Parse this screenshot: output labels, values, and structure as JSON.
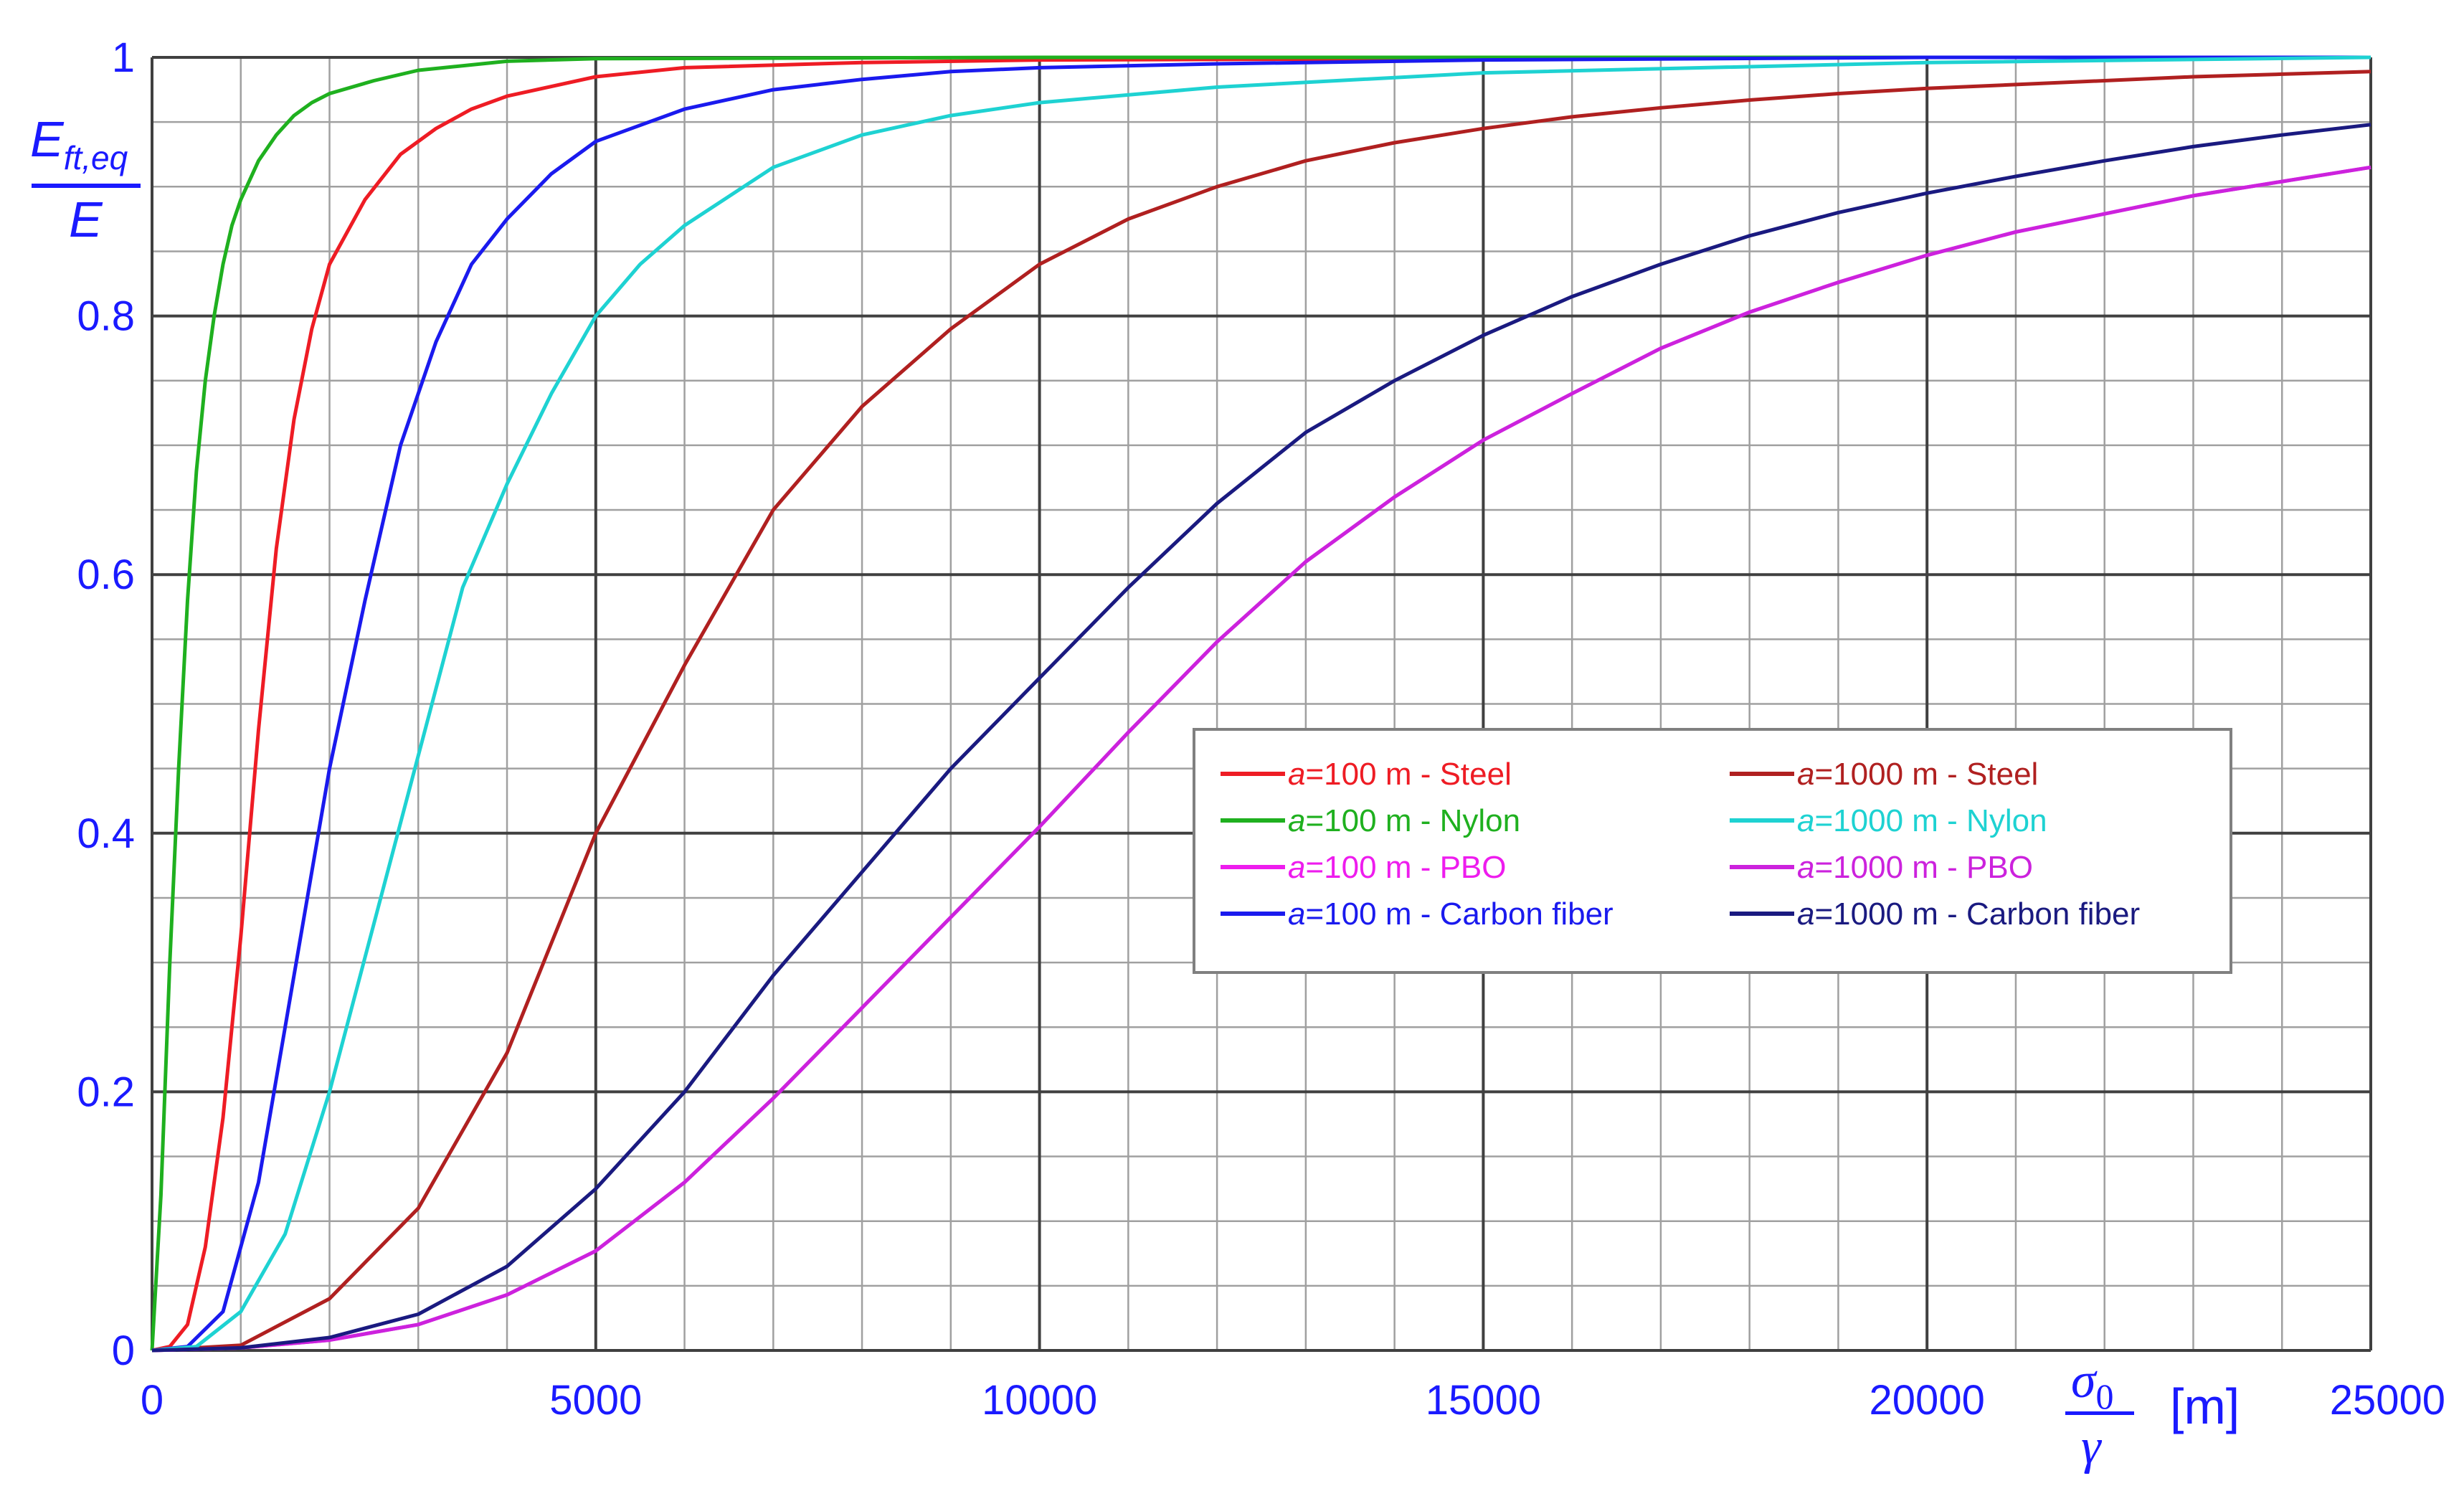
{
  "chart_data": {
    "type": "line",
    "ylabel": {
      "main": "E",
      "sub": "ft,eq",
      "denominator": "E"
    },
    "xlabel": {
      "numerator": "σ",
      "numerator_sub": "0",
      "denominator": "γ",
      "unit": "[m]"
    },
    "xlim": [
      0,
      25000
    ],
    "ylim": [
      0,
      1
    ],
    "x_ticks": [
      0,
      5000,
      10000,
      15000,
      20000,
      25000
    ],
    "x_tick_labels": [
      "0",
      "5000",
      "10000",
      "15000",
      "20000",
      "25000"
    ],
    "y_ticks": [
      0,
      0.2,
      0.4,
      0.6,
      0.8,
      1
    ],
    "y_tick_labels": [
      "0",
      "0.2",
      "0.4",
      "0.6",
      "0.8",
      "1"
    ],
    "grid": true,
    "legend_position": "center-right",
    "colors": {
      "axis_text": "#1a1aff",
      "grid_major": "#404040",
      "grid_minor": "#a0a0a0"
    },
    "series": [
      {
        "name": "a=100 m - Steel",
        "a": "a",
        "rest": "=100 m - Steel",
        "color": "#ee1c24",
        "x": [
          0,
          200,
          400,
          600,
          800,
          1000,
          1200,
          1400,
          1600,
          1800,
          2000,
          2400,
          2800,
          3200,
          3600,
          4000,
          5000,
          6000,
          8000,
          10000,
          15000,
          20000,
          25000
        ],
        "y": [
          0,
          0.003,
          0.02,
          0.08,
          0.18,
          0.32,
          0.48,
          0.62,
          0.72,
          0.79,
          0.84,
          0.89,
          0.925,
          0.945,
          0.96,
          0.97,
          0.985,
          0.992,
          0.996,
          0.998,
          0.999,
          1.0,
          1.0
        ]
      },
      {
        "name": "a=100 m - Nylon",
        "a": "a",
        "rest": "=100 m - Nylon",
        "color": "#1fb01f",
        "x": [
          0,
          100,
          200,
          300,
          400,
          500,
          600,
          700,
          800,
          900,
          1000,
          1200,
          1400,
          1600,
          1800,
          2000,
          2500,
          3000,
          4000,
          5000,
          10000,
          25000
        ],
        "y": [
          0,
          0.12,
          0.3,
          0.45,
          0.58,
          0.68,
          0.75,
          0.8,
          0.84,
          0.87,
          0.89,
          0.92,
          0.94,
          0.955,
          0.965,
          0.972,
          0.982,
          0.99,
          0.997,
          0.999,
          1.0,
          1.0
        ]
      },
      {
        "name": "a=100 m - PBO",
        "a": "a",
        "rest": "=100 m - PBO",
        "color": "#ee1cee",
        "x": [
          0,
          1000,
          2000,
          3000,
          4000,
          5000,
          6000,
          7000,
          8000,
          9000,
          10000,
          11000,
          12000,
          13000,
          14000,
          15000,
          16000,
          17000,
          18000,
          19000,
          20000,
          21000,
          22000,
          23000,
          24000,
          25000
        ],
        "y": [
          0,
          0.002,
          0.008,
          0.02,
          0.043,
          0.077,
          0.13,
          0.195,
          0.265,
          0.335,
          0.405,
          0.478,
          0.548,
          0.61,
          0.66,
          0.704,
          0.74,
          0.775,
          0.803,
          0.826,
          0.847,
          0.865,
          0.879,
          0.893,
          0.904,
          0.915
        ]
      },
      {
        "name": "a=100 m - Carbon fiber",
        "a": "a",
        "rest": "=100 m - Carbon fiber",
        "color": "#1a1aee",
        "x": [
          0,
          400,
          800,
          1200,
          1600,
          2000,
          2400,
          2800,
          3200,
          3600,
          4000,
          4500,
          5000,
          6000,
          7000,
          8000,
          9000,
          10000,
          12000,
          15000,
          20000,
          25000
        ],
        "y": [
          0,
          0.003,
          0.03,
          0.13,
          0.29,
          0.45,
          0.58,
          0.7,
          0.78,
          0.84,
          0.875,
          0.91,
          0.935,
          0.96,
          0.975,
          0.983,
          0.989,
          0.992,
          0.995,
          0.998,
          1.0,
          1.0
        ]
      },
      {
        "name": "a=1000 m - Steel",
        "a": "a",
        "rest": "=1000 m - Steel",
        "color": "#b02020",
        "x": [
          0,
          1000,
          2000,
          3000,
          4000,
          5000,
          6000,
          7000,
          8000,
          9000,
          10000,
          11000,
          12000,
          13000,
          14000,
          15000,
          16000,
          17000,
          18000,
          19000,
          20000,
          21000,
          22000,
          23000,
          24000,
          25000
        ],
        "y": [
          0,
          0.004,
          0.04,
          0.11,
          0.23,
          0.4,
          0.53,
          0.65,
          0.73,
          0.79,
          0.84,
          0.875,
          0.9,
          0.92,
          0.934,
          0.945,
          0.954,
          0.961,
          0.967,
          0.972,
          0.976,
          0.979,
          0.982,
          0.985,
          0.987,
          0.989
        ]
      },
      {
        "name": "a=1000 m - Nylon",
        "a": "a",
        "rest": "=1000 m - Nylon",
        "color": "#1ed2d2",
        "x": [
          0,
          500,
          1000,
          1500,
          2000,
          2500,
          3000,
          3500,
          4000,
          4500,
          5000,
          5500,
          6000,
          7000,
          8000,
          9000,
          10000,
          12000,
          15000,
          20000,
          25000
        ],
        "y": [
          0,
          0.003,
          0.03,
          0.09,
          0.2,
          0.33,
          0.46,
          0.59,
          0.67,
          0.74,
          0.8,
          0.84,
          0.87,
          0.915,
          0.94,
          0.955,
          0.965,
          0.977,
          0.988,
          0.996,
          1.0
        ]
      },
      {
        "name": "a=1000 m - PBO",
        "a": "a",
        "rest": "=1000 m - PBO",
        "color": "#cc22dd",
        "x": [
          0,
          1000,
          2000,
          3000,
          4000,
          5000,
          6000,
          7000,
          8000,
          9000,
          10000,
          11000,
          12000,
          13000,
          14000,
          15000,
          16000,
          17000,
          18000,
          19000,
          20000,
          21000,
          22000,
          23000,
          24000,
          25000
        ],
        "y": [
          0,
          0.002,
          0.008,
          0.02,
          0.043,
          0.077,
          0.13,
          0.195,
          0.265,
          0.335,
          0.405,
          0.478,
          0.548,
          0.61,
          0.66,
          0.704,
          0.74,
          0.775,
          0.803,
          0.826,
          0.847,
          0.865,
          0.879,
          0.893,
          0.904,
          0.915
        ]
      },
      {
        "name": "a=1000 m - Carbon fiber",
        "a": "a",
        "rest": "=1000 m - Carbon fiber",
        "color": "#1a1a80",
        "x": [
          0,
          1000,
          2000,
          3000,
          4000,
          5000,
          6000,
          7000,
          8000,
          9000,
          10000,
          11000,
          12000,
          13000,
          14000,
          15000,
          16000,
          17000,
          18000,
          19000,
          20000,
          21000,
          22000,
          23000,
          24000,
          25000
        ],
        "y": [
          0,
          0.002,
          0.01,
          0.028,
          0.065,
          0.125,
          0.2,
          0.29,
          0.37,
          0.45,
          0.52,
          0.59,
          0.655,
          0.71,
          0.75,
          0.785,
          0.815,
          0.84,
          0.862,
          0.88,
          0.895,
          0.908,
          0.92,
          0.931,
          0.94,
          0.948
        ]
      }
    ]
  }
}
